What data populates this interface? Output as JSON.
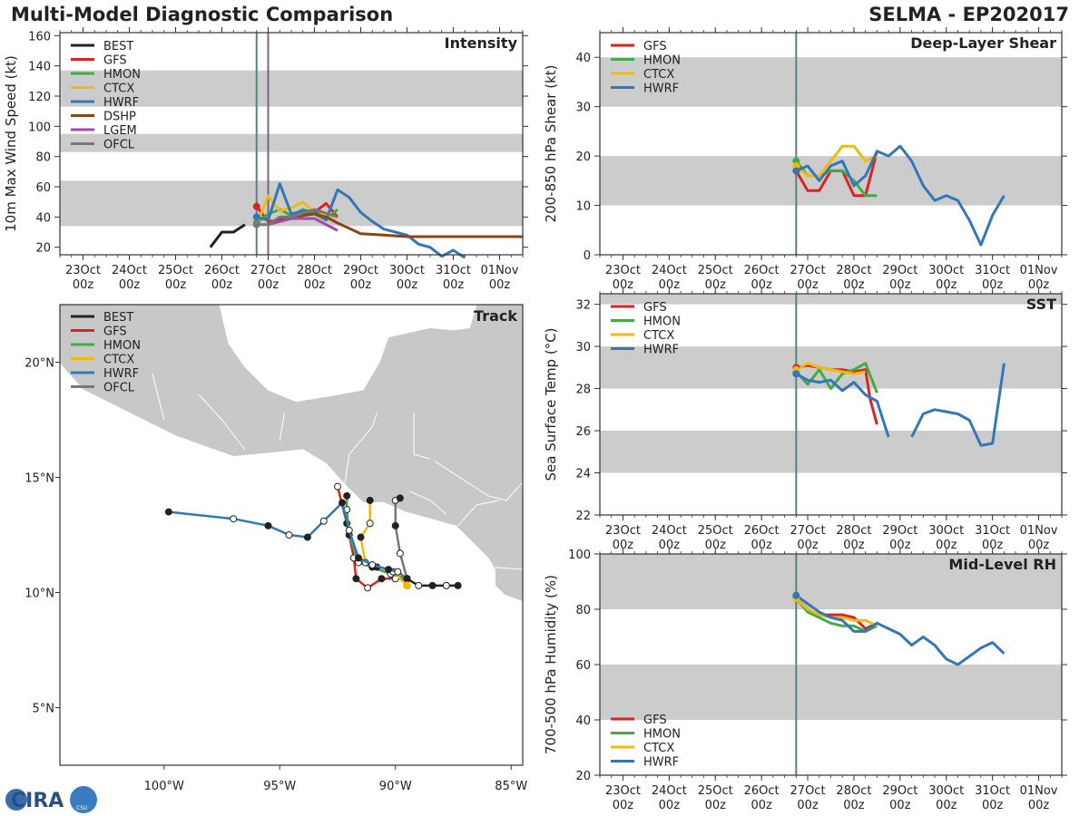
{
  "header": {
    "title": "Multi-Model Diagnostic Comparison",
    "storm": "SELMA - EP202017"
  },
  "logo": {
    "text": "CIRA",
    "sub": "CSU"
  },
  "colors": {
    "BEST": "#222222",
    "GFS": "#dd2222",
    "HMON": "#44aa44",
    "CTCX": "#eebb11",
    "HWRF": "#3377bb",
    "DSHP": "#8b4513",
    "LGEM": "#aa44aa",
    "OFCL": "#777777",
    "band": "#cccccc",
    "land": "#c8c8c8",
    "marker": "#5f7f7f"
  },
  "time_axis": {
    "tick_labels": [
      [
        "23Oct",
        "00z"
      ],
      [
        "24Oct",
        "00z"
      ],
      [
        "25Oct",
        "00z"
      ],
      [
        "26Oct",
        "00z"
      ],
      [
        "27Oct",
        "00z"
      ],
      [
        "28Oct",
        "00z"
      ],
      [
        "29Oct",
        "00z"
      ],
      [
        "30Oct",
        "00z"
      ],
      [
        "31Oct",
        "00z"
      ],
      [
        "01Nov",
        "00z"
      ]
    ],
    "range_days": [
      0,
      10
    ]
  },
  "chart_data": [
    {
      "id": "intensity",
      "type": "line",
      "title": "Intensity",
      "xlabel": "",
      "ylabel": "10m Max Wind Speed (kt)",
      "ylim": [
        15,
        162
      ],
      "yticks": [
        20,
        40,
        60,
        80,
        100,
        120,
        140,
        160
      ],
      "bands": [
        [
          34,
          64
        ],
        [
          83,
          95
        ],
        [
          113,
          137
        ]
      ],
      "vlines": [
        {
          "x": 4.25,
          "color": "#5f7f7f"
        },
        {
          "x": 4.5,
          "color": "#776688"
        }
      ],
      "legend": [
        "BEST",
        "GFS",
        "HMON",
        "CTCX",
        "HWRF",
        "DSHP",
        "LGEM",
        "OFCL"
      ],
      "series": [
        {
          "name": "BEST",
          "x": [
            3.25,
            3.5,
            3.75,
            4.0
          ],
          "y": [
            20,
            30,
            30,
            35
          ]
        },
        {
          "name": "GFS",
          "x": [
            4.25,
            4.5,
            4.75,
            5.0,
            5.25,
            5.5,
            5.75,
            6.0
          ],
          "y": [
            47,
            37,
            38,
            41,
            41,
            43,
            49,
            40
          ]
        },
        {
          "name": "HMON",
          "x": [
            4.25,
            4.5,
            4.75,
            5.0,
            5.25,
            5.5,
            5.75,
            6.0
          ],
          "y": [
            36,
            42,
            45,
            41,
            45,
            42,
            38,
            45
          ]
        },
        {
          "name": "CTCX",
          "x": [
            4.25,
            4.5,
            4.75,
            5.0,
            5.25,
            5.5,
            5.75,
            6.0
          ],
          "y": [
            35,
            54,
            44,
            46,
            50,
            43,
            42,
            36
          ]
        },
        {
          "name": "HWRF",
          "x": [
            4.25,
            4.5,
            4.75,
            5.0,
            5.25,
            5.5,
            5.75,
            6.0,
            6.25,
            6.5,
            6.75,
            7.0,
            7.25,
            7.5,
            7.75,
            8.0,
            8.25,
            8.5,
            8.75
          ],
          "y": [
            40,
            38,
            62,
            42,
            44,
            44,
            38,
            58,
            53,
            43,
            37,
            32,
            30,
            28,
            22,
            20,
            14,
            18,
            13
          ]
        },
        {
          "name": "DSHP",
          "x": [
            4.5,
            4.75,
            5.0,
            5.25,
            5.5,
            5.75,
            6.0,
            6.5,
            7.0,
            7.5,
            8.0,
            8.5,
            9.0,
            9.5,
            10.0
          ],
          "y": [
            35,
            38,
            40,
            41,
            42,
            40,
            36,
            29,
            28,
            27,
            27,
            27,
            27,
            27,
            27
          ]
        },
        {
          "name": "LGEM",
          "x": [
            4.5,
            4.75,
            5.0,
            5.25,
            5.5,
            5.75,
            6.0
          ],
          "y": [
            35,
            37,
            39,
            39,
            39,
            35,
            31
          ]
        },
        {
          "name": "OFCL",
          "x": [
            4.25,
            4.5,
            4.75,
            5.0,
            5.5,
            6.0
          ],
          "y": [
            35,
            35,
            40,
            40,
            45,
            40
          ]
        }
      ]
    },
    {
      "id": "shear",
      "type": "line",
      "title": "Deep-Layer Shear",
      "xlabel": "",
      "ylabel": "200-850 hPa Shear (kt)",
      "ylim": [
        0,
        45
      ],
      "yticks": [
        0,
        10,
        20,
        30,
        40
      ],
      "bands": [
        [
          10,
          20
        ],
        [
          30,
          40
        ]
      ],
      "vlines": [
        {
          "x": 4.25,
          "color": "#5f7f7f"
        }
      ],
      "legend": [
        "GFS",
        "HMON",
        "CTCX",
        "HWRF"
      ],
      "series": [
        {
          "name": "GFS",
          "x": [
            4.25,
            4.5,
            4.75,
            5.0,
            5.25,
            5.5,
            5.75,
            6.0
          ],
          "y": [
            17,
            13,
            13,
            17,
            17,
            12,
            12,
            21
          ]
        },
        {
          "name": "HMON",
          "x": [
            4.25,
            4.5,
            4.75,
            5.0,
            5.25,
            5.5,
            5.75,
            6.0
          ],
          "y": [
            19,
            16,
            16,
            17,
            17,
            15,
            12,
            12
          ]
        },
        {
          "name": "CTCX",
          "x": [
            4.25,
            4.5,
            4.75,
            5.0,
            5.25,
            5.5,
            5.75,
            6.0
          ],
          "y": [
            18,
            16,
            16,
            19,
            22,
            22,
            19,
            20
          ]
        },
        {
          "name": "HWRF",
          "x": [
            4.25,
            4.5,
            4.75,
            5.0,
            5.25,
            5.5,
            5.75,
            6.0,
            6.25,
            6.5,
            6.75,
            7.0,
            7.25,
            7.5,
            7.75,
            8.0,
            8.25,
            8.5,
            8.75
          ],
          "y": [
            17,
            18,
            15,
            18,
            19,
            14,
            16,
            21,
            20,
            22,
            19,
            14,
            11,
            12,
            11,
            7,
            2,
            8,
            12
          ]
        }
      ]
    },
    {
      "id": "sst",
      "type": "line",
      "title": "SST",
      "xlabel": "",
      "ylabel": "Sea Surface Temp (°C)",
      "ylim": [
        22,
        32.5
      ],
      "yticks": [
        22,
        24,
        26,
        28,
        30,
        32
      ],
      "bands": [
        [
          24,
          26
        ],
        [
          28,
          30
        ],
        [
          32,
          32.5
        ]
      ],
      "vlines": [
        {
          "x": 4.25,
          "color": "#5f7f7f"
        }
      ],
      "legend": [
        "GFS",
        "HMON",
        "CTCX",
        "HWRF"
      ],
      "series": [
        {
          "name": "GFS",
          "x": [
            4.25,
            4.5,
            4.75,
            5.0,
            5.25,
            5.5,
            5.75,
            5.85,
            6.0
          ],
          "y": [
            29.0,
            29.1,
            29.0,
            28.9,
            28.9,
            28.8,
            28.9,
            27.5,
            26.3
          ]
        },
        {
          "name": "HMON",
          "x": [
            4.25,
            4.5,
            4.75,
            5.0,
            5.25,
            5.5,
            5.75,
            6.0
          ],
          "y": [
            28.8,
            28.2,
            28.9,
            28.0,
            28.7,
            28.9,
            29.2,
            27.8
          ]
        },
        {
          "name": "CTCX",
          "x": [
            4.25,
            4.5,
            4.75,
            5.0,
            5.25,
            5.5,
            5.75
          ],
          "y": [
            28.9,
            29.2,
            29.0,
            28.9,
            28.8,
            28.7,
            28.8
          ]
        },
        {
          "name": "HWRF",
          "x": [
            4.25,
            4.5,
            4.75,
            5.0,
            5.25,
            5.5,
            5.75,
            6.0,
            6.25
          ],
          "y": [
            28.7,
            28.4,
            28.3,
            28.4,
            27.9,
            28.3,
            27.7,
            27.4,
            25.7
          ]
        },
        {
          "name": "HWRF",
          "x": [
            6.75,
            7.0,
            7.25,
            7.5,
            7.75,
            8.0,
            8.25,
            8.5,
            8.75
          ],
          "y": [
            25.7,
            26.8,
            27.0,
            26.9,
            26.8,
            26.5,
            25.3,
            25.4,
            29.2
          ]
        }
      ]
    },
    {
      "id": "rh",
      "type": "line",
      "title": "Mid-Level RH",
      "xlabel": "",
      "ylabel": "700-500 hPa Humidity (%)",
      "ylim": [
        20,
        100
      ],
      "yticks": [
        20,
        40,
        60,
        80,
        100
      ],
      "bands": [
        [
          40,
          60
        ],
        [
          80,
          100
        ]
      ],
      "vlines": [
        {
          "x": 4.25,
          "color": "#5f7f7f"
        }
      ],
      "legend": [
        "GFS",
        "HMON",
        "CTCX",
        "HWRF"
      ],
      "series": [
        {
          "name": "GFS",
          "x": [
            4.25,
            4.5,
            4.75,
            5.0,
            5.25,
            5.5,
            5.75,
            6.0
          ],
          "y": [
            84,
            80,
            78,
            78,
            78,
            77,
            73,
            75
          ]
        },
        {
          "name": "HMON",
          "x": [
            4.25,
            4.5,
            4.75,
            5.0,
            5.25,
            5.5,
            5.75,
            6.0
          ],
          "y": [
            84,
            79,
            77,
            75,
            74,
            74,
            72,
            74
          ]
        },
        {
          "name": "CTCX",
          "x": [
            4.25,
            4.5,
            4.75,
            5.0,
            5.25,
            5.5,
            5.75,
            6.0
          ],
          "y": [
            84,
            80,
            78,
            77,
            77,
            76,
            76,
            74
          ]
        },
        {
          "name": "HWRF",
          "x": [
            4.25,
            4.5,
            4.75,
            5.0,
            5.25,
            5.5,
            5.75,
            6.0,
            6.25,
            6.5,
            6.75,
            7.0,
            7.25,
            7.5,
            7.75,
            8.0,
            8.25,
            8.5,
            8.75
          ],
          "y": [
            85,
            82,
            79,
            77,
            76,
            72,
            72,
            75,
            73,
            71,
            67,
            70,
            67,
            62,
            60,
            63,
            66,
            68,
            64
          ]
        }
      ]
    },
    {
      "id": "track",
      "type": "line",
      "title": "Track",
      "xlabel": "",
      "ylabel": "",
      "xlim": [
        -104.5,
        -84.5
      ],
      "ylim": [
        2.5,
        22.5
      ],
      "xticks": [
        -100,
        -95,
        -90,
        -85
      ],
      "xtick_labels": [
        "100°W",
        "95°W",
        "90°W",
        "85°W"
      ],
      "yticks": [
        5,
        10,
        15,
        20
      ],
      "ytick_labels": [
        "5°N",
        "10°N",
        "15°N",
        "20°N"
      ],
      "legend": [
        "BEST",
        "GFS",
        "HMON",
        "CTCX",
        "HWRF",
        "OFCL"
      ],
      "series": [
        {
          "name": "BEST",
          "lon": [
            -87.3,
            -87.8,
            -88.4,
            -89.0,
            -89.5
          ],
          "lat": [
            10.3,
            10.3,
            10.3,
            10.3,
            10.6
          ]
        },
        {
          "name": "GFS",
          "lon": [
            -89.5,
            -90.0,
            -90.6,
            -91.2,
            -91.7,
            -91.8,
            -92.1,
            -92.5
          ],
          "lat": [
            10.6,
            10.6,
            10.6,
            10.2,
            10.6,
            11.5,
            13.0,
            14.6
          ]
        },
        {
          "name": "HMON",
          "lon": [
            -89.5,
            -90.2,
            -91.0,
            -91.6,
            -92.0,
            -92.1,
            -92.1
          ],
          "lat": [
            10.6,
            10.8,
            11.1,
            11.3,
            12.5,
            13.6,
            14.2
          ]
        },
        {
          "name": "CTCX",
          "lon": [
            -89.5,
            -90.1,
            -90.8,
            -91.3,
            -91.5,
            -91.1,
            -91.1
          ],
          "lat": [
            10.3,
            10.9,
            11.1,
            11.3,
            12.4,
            13.0,
            14.0
          ]
        },
        {
          "name": "HWRF",
          "lon": [
            -89.5,
            -89.9,
            -90.3,
            -91.0,
            -91.6,
            -92.0,
            -92.3,
            -93.1,
            -93.8,
            -94.6,
            -95.5,
            -97.0,
            -99.8
          ],
          "lat": [
            10.6,
            10.9,
            11.0,
            11.2,
            11.5,
            12.7,
            13.9,
            13.1,
            12.4,
            12.5,
            12.9,
            13.2,
            13.5
          ]
        },
        {
          "name": "OFCL",
          "lon": [
            -89.5,
            -89.8,
            -90.0,
            -90.0,
            -89.8
          ],
          "lat": [
            10.6,
            11.7,
            12.9,
            14.0,
            14.1
          ]
        }
      ]
    }
  ]
}
